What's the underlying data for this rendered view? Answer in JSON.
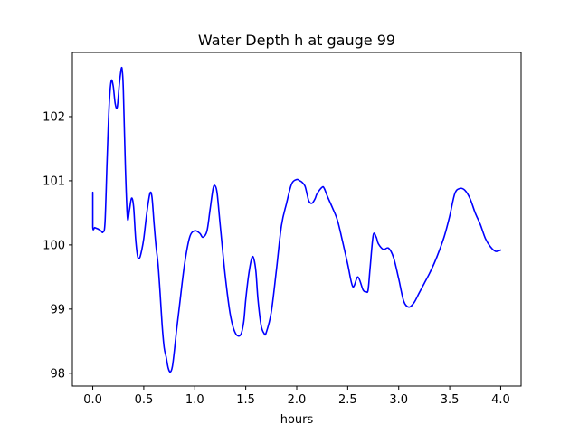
{
  "chart_data": {
    "type": "line",
    "title": "Water Depth h at gauge 99",
    "xlabel": "hours",
    "ylabel": "",
    "xlim": [
      -0.2,
      4.2
    ],
    "ylim": [
      97.8,
      103.0
    ],
    "x_ticks": [
      0.0,
      0.5,
      1.0,
      1.5,
      2.0,
      2.5,
      3.0,
      3.5,
      4.0
    ],
    "x_tick_labels": [
      "0.0",
      "0.5",
      "1.0",
      "1.5",
      "2.0",
      "2.5",
      "3.0",
      "3.5",
      "4.0"
    ],
    "y_ticks": [
      98,
      99,
      100,
      101,
      102
    ],
    "y_tick_labels": [
      "98",
      "99",
      "100",
      "101",
      "102"
    ],
    "grid": false,
    "line_color": "#0000ff",
    "series": [
      {
        "x": [
          0.0,
          0.0,
          0.02,
          0.05,
          0.08,
          0.1,
          0.12,
          0.14,
          0.16,
          0.18,
          0.2,
          0.22,
          0.24,
          0.26,
          0.28,
          0.29,
          0.3,
          0.32,
          0.34,
          0.36,
          0.38,
          0.4,
          0.42,
          0.44,
          0.46,
          0.48,
          0.5,
          0.53,
          0.56,
          0.58,
          0.6,
          0.62,
          0.64,
          0.66,
          0.68,
          0.7,
          0.72,
          0.74,
          0.76,
          0.78,
          0.8,
          0.82,
          0.85,
          0.9,
          0.95,
          1.0,
          1.05,
          1.08,
          1.12,
          1.15,
          1.18,
          1.2,
          1.22,
          1.25,
          1.3,
          1.35,
          1.4,
          1.45,
          1.48,
          1.5,
          1.53,
          1.56,
          1.58,
          1.6,
          1.62,
          1.65,
          1.68,
          1.7,
          1.75,
          1.8,
          1.85,
          1.9,
          1.95,
          2.0,
          2.03,
          2.05,
          2.08,
          2.1,
          2.12,
          2.15,
          2.18,
          2.2,
          2.25,
          2.27,
          2.3,
          2.35,
          2.4,
          2.45,
          2.5,
          2.55,
          2.6,
          2.65,
          2.68,
          2.7,
          2.72,
          2.75,
          2.78,
          2.8,
          2.85,
          2.9,
          2.95,
          3.0,
          3.05,
          3.1,
          3.15,
          3.2,
          3.25,
          3.3,
          3.35,
          3.4,
          3.45,
          3.5,
          3.55,
          3.6,
          3.65,
          3.7,
          3.75,
          3.8,
          3.85,
          3.9,
          3.95,
          4.0
        ],
        "y": [
          100.82,
          100.28,
          100.27,
          100.25,
          100.22,
          100.2,
          100.35,
          101.3,
          102.15,
          102.55,
          102.48,
          102.2,
          102.15,
          102.5,
          102.75,
          102.7,
          102.4,
          101.2,
          100.42,
          100.55,
          100.73,
          100.6,
          100.1,
          99.82,
          99.8,
          99.92,
          100.1,
          100.5,
          100.8,
          100.75,
          100.35,
          99.98,
          99.7,
          99.25,
          98.75,
          98.4,
          98.25,
          98.08,
          98.02,
          98.1,
          98.35,
          98.65,
          99.05,
          99.7,
          100.12,
          100.22,
          100.18,
          100.12,
          100.22,
          100.55,
          100.88,
          100.92,
          100.8,
          100.3,
          99.5,
          98.9,
          98.62,
          98.6,
          98.8,
          99.15,
          99.55,
          99.8,
          99.78,
          99.58,
          99.15,
          98.75,
          98.62,
          98.63,
          98.95,
          99.6,
          100.3,
          100.65,
          100.95,
          101.02,
          101.0,
          100.98,
          100.92,
          100.8,
          100.68,
          100.65,
          100.72,
          100.8,
          100.9,
          100.88,
          100.76,
          100.58,
          100.38,
          100.05,
          99.7,
          99.35,
          99.5,
          99.3,
          99.27,
          99.3,
          99.65,
          100.15,
          100.12,
          100.02,
          99.93,
          99.95,
          99.8,
          99.47,
          99.12,
          99.03,
          99.1,
          99.25,
          99.4,
          99.55,
          99.72,
          99.92,
          100.15,
          100.45,
          100.8,
          100.88,
          100.85,
          100.72,
          100.5,
          100.32,
          100.1,
          99.97,
          99.9,
          99.92
        ]
      }
    ]
  }
}
